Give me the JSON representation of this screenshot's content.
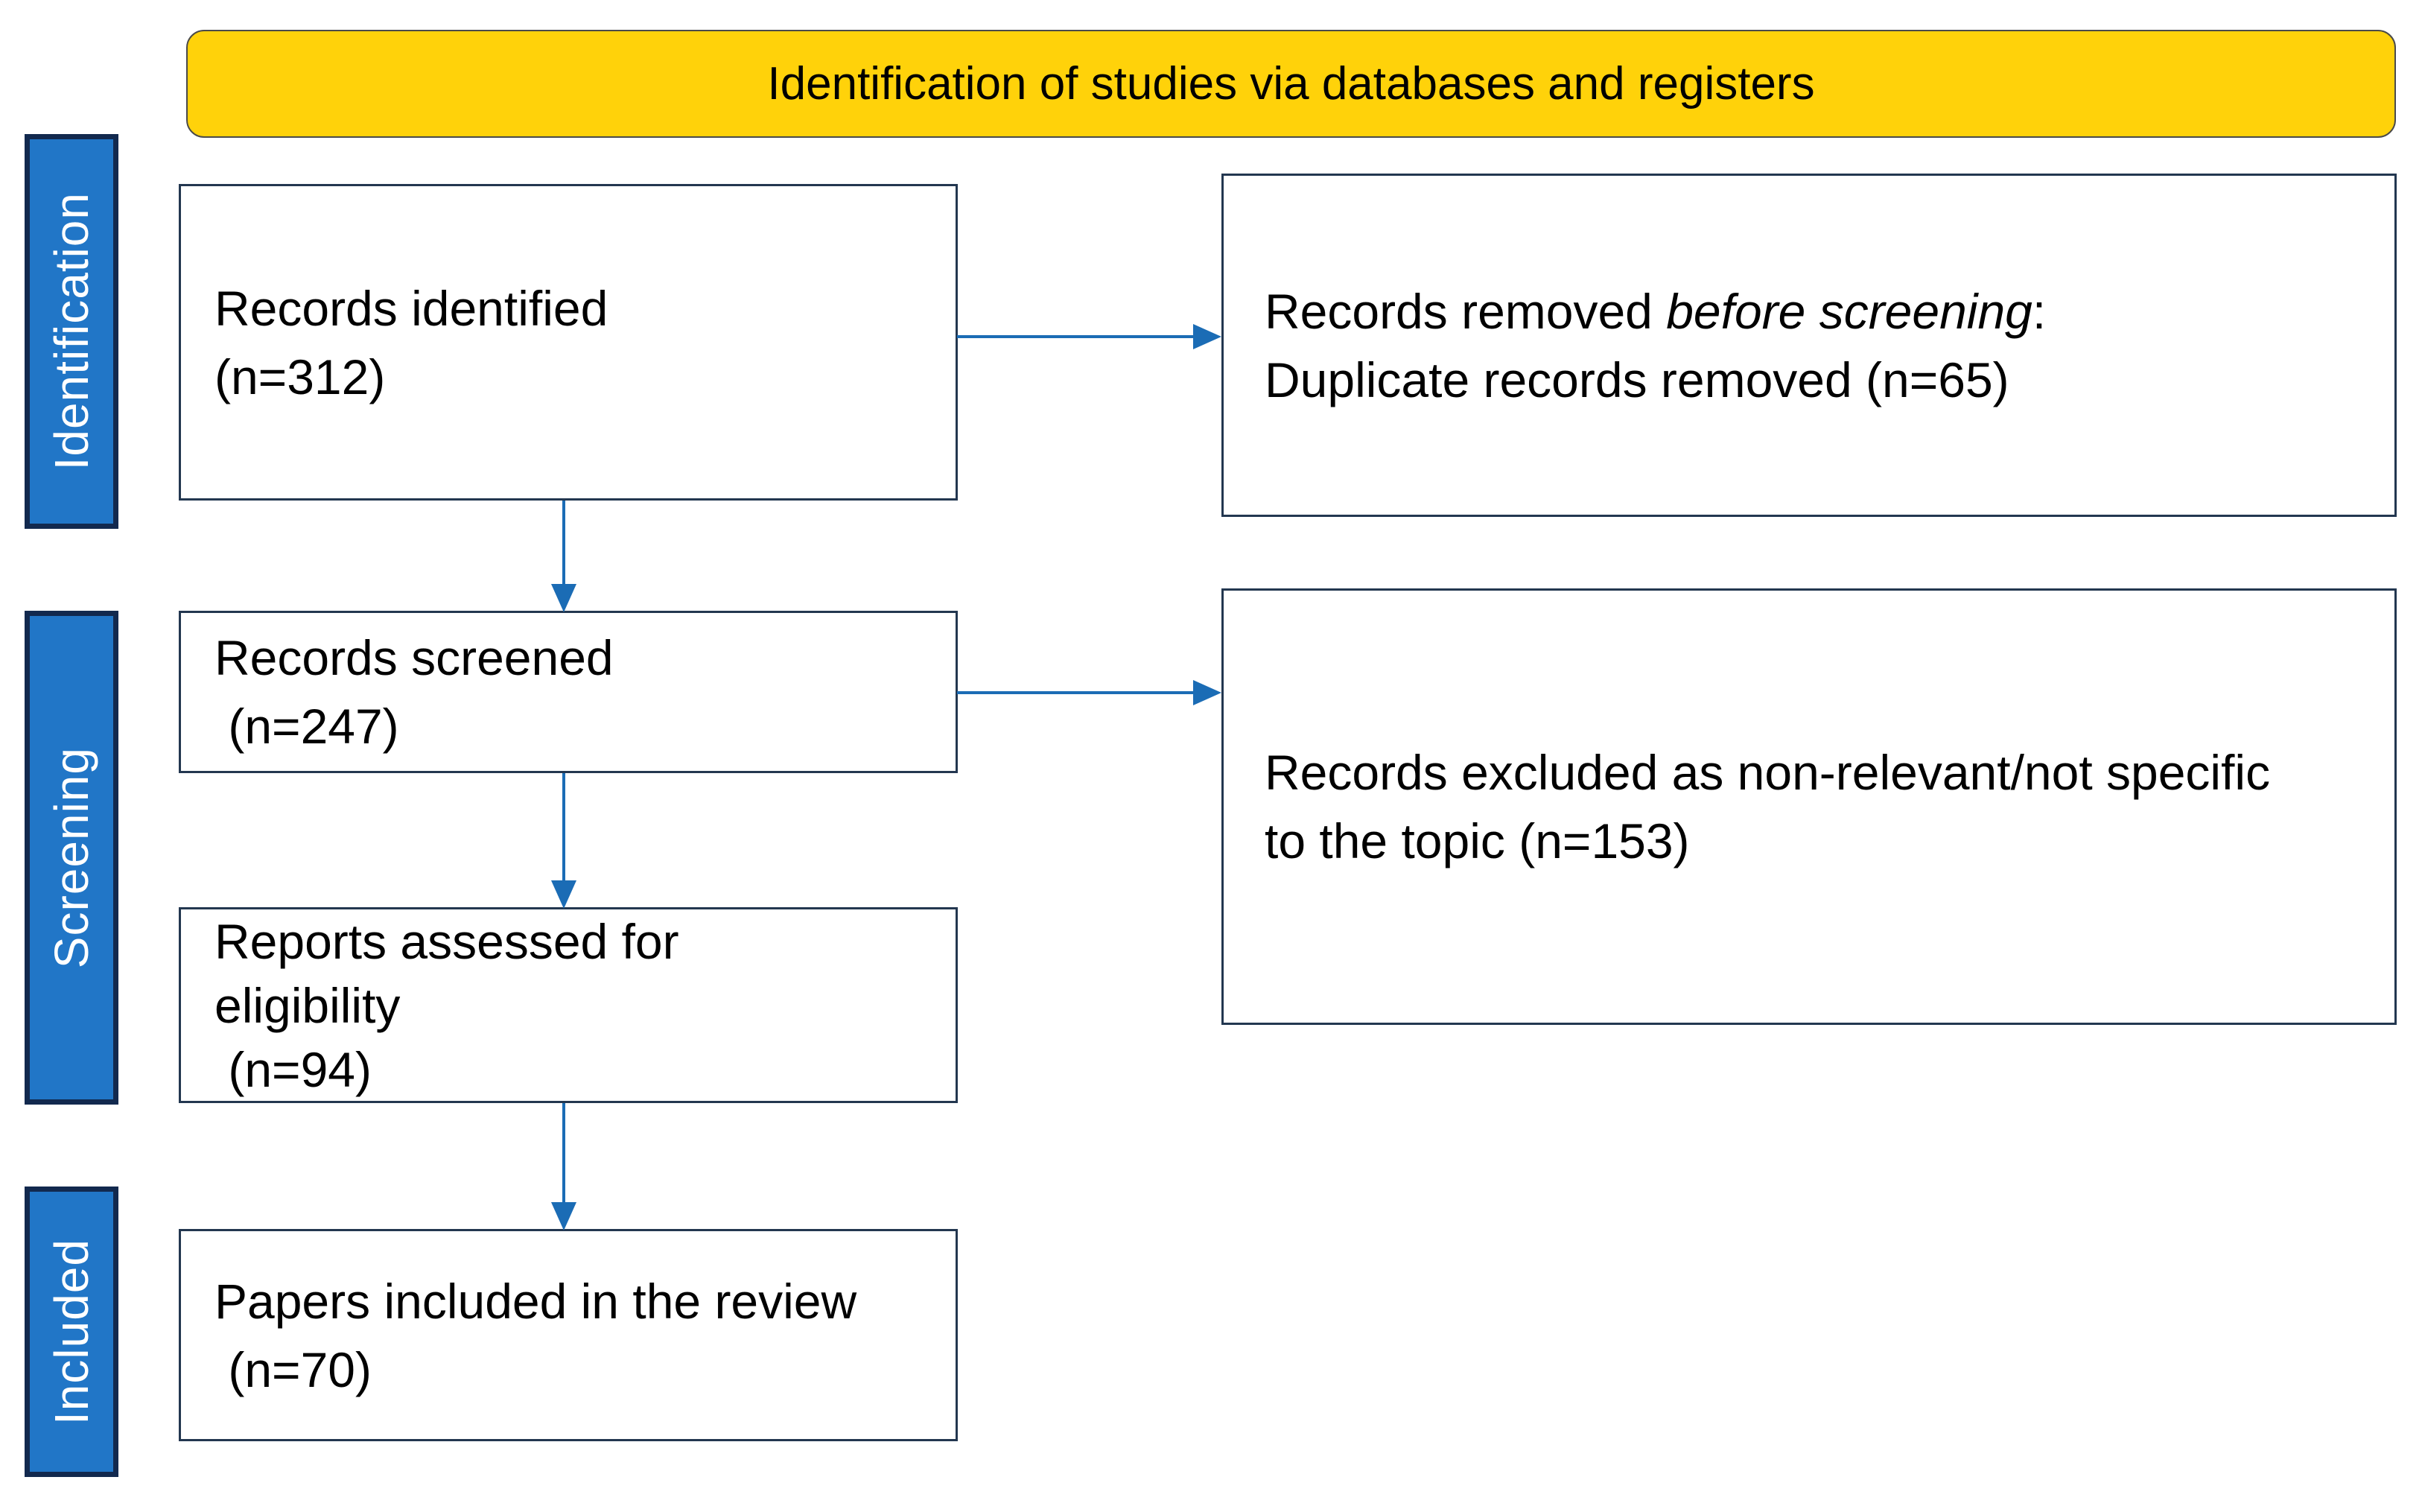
{
  "banner": {
    "label": "Identification of studies via databases and registers"
  },
  "sidebar": {
    "stages": [
      {
        "label": "Identification"
      },
      {
        "label": "Screening"
      },
      {
        "label": "Included"
      }
    ]
  },
  "boxes": {
    "records_identified": {
      "lines": [
        "Records identified",
        "(n=312)"
      ]
    },
    "records_removed": {
      "line1_prefix": "Records removed ",
      "line1_italic": "before screening",
      "line1_suffix": ":",
      "line2": "Duplicate records removed (n=65)"
    },
    "records_screened": {
      "lines": [
        "Records screened",
        " (n=247)"
      ]
    },
    "records_excluded": {
      "lines": [
        "Records excluded as non-relevant/not specific",
        "to the topic (n=153)"
      ]
    },
    "reports_assessed": {
      "lines": [
        "Reports assessed for",
        "eligibility",
        " (n=94)"
      ]
    },
    "papers_included": {
      "lines": [
        "Papers included in the review",
        " (n=70)"
      ]
    }
  },
  "colors": {
    "banner_fill": "#FFD20A",
    "banner_border": "#4a4a4a",
    "bar_fill": "#2176C7",
    "bar_border": "#12294E",
    "box_border": "#233750",
    "arrow": "#1B6CB5",
    "text": "#000000",
    "bar_text": "#FFFFFF"
  }
}
